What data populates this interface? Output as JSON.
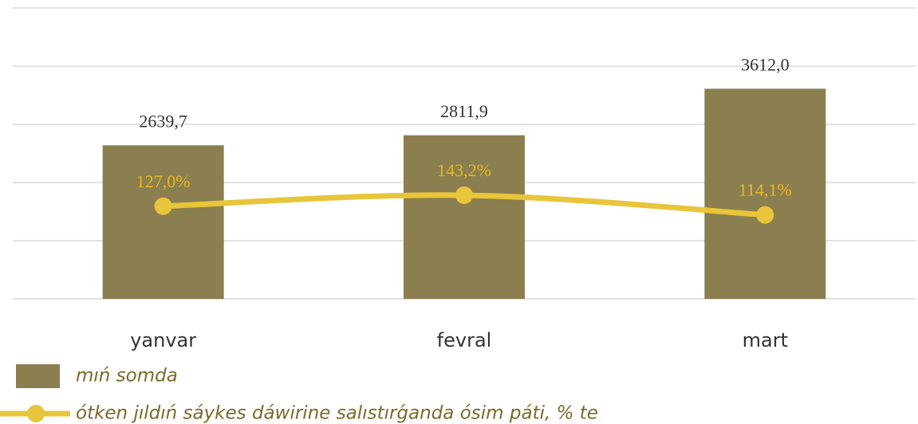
{
  "chart_data": {
    "type": "bar",
    "categories": [
      "yanvar",
      "fevral",
      "mart"
    ],
    "series": [
      {
        "name": "mıń somda",
        "type": "bar",
        "color": "#8b7f4f",
        "values": [
          2639.7,
          2811.9,
          3612.0
        ],
        "value_labels": [
          "2639,7",
          "2811,9",
          "3612,0"
        ]
      },
      {
        "name": "ótken jıldıń sáykes dáwirine salıstırǵanda ósim páti, % te",
        "type": "line",
        "axis": "y2",
        "color": "#e8c53a",
        "values": [
          127.0,
          143.2,
          114.1
        ],
        "value_labels": [
          "127,0%",
          "143,2%",
          "114,1%"
        ]
      }
    ],
    "ylim": [
      0,
      5000
    ],
    "yticks": [
      0,
      1000,
      2000,
      3000,
      4000,
      5000
    ],
    "y2lim": [
      -10,
      420
    ],
    "grid": true,
    "legend": "bottom-left"
  }
}
